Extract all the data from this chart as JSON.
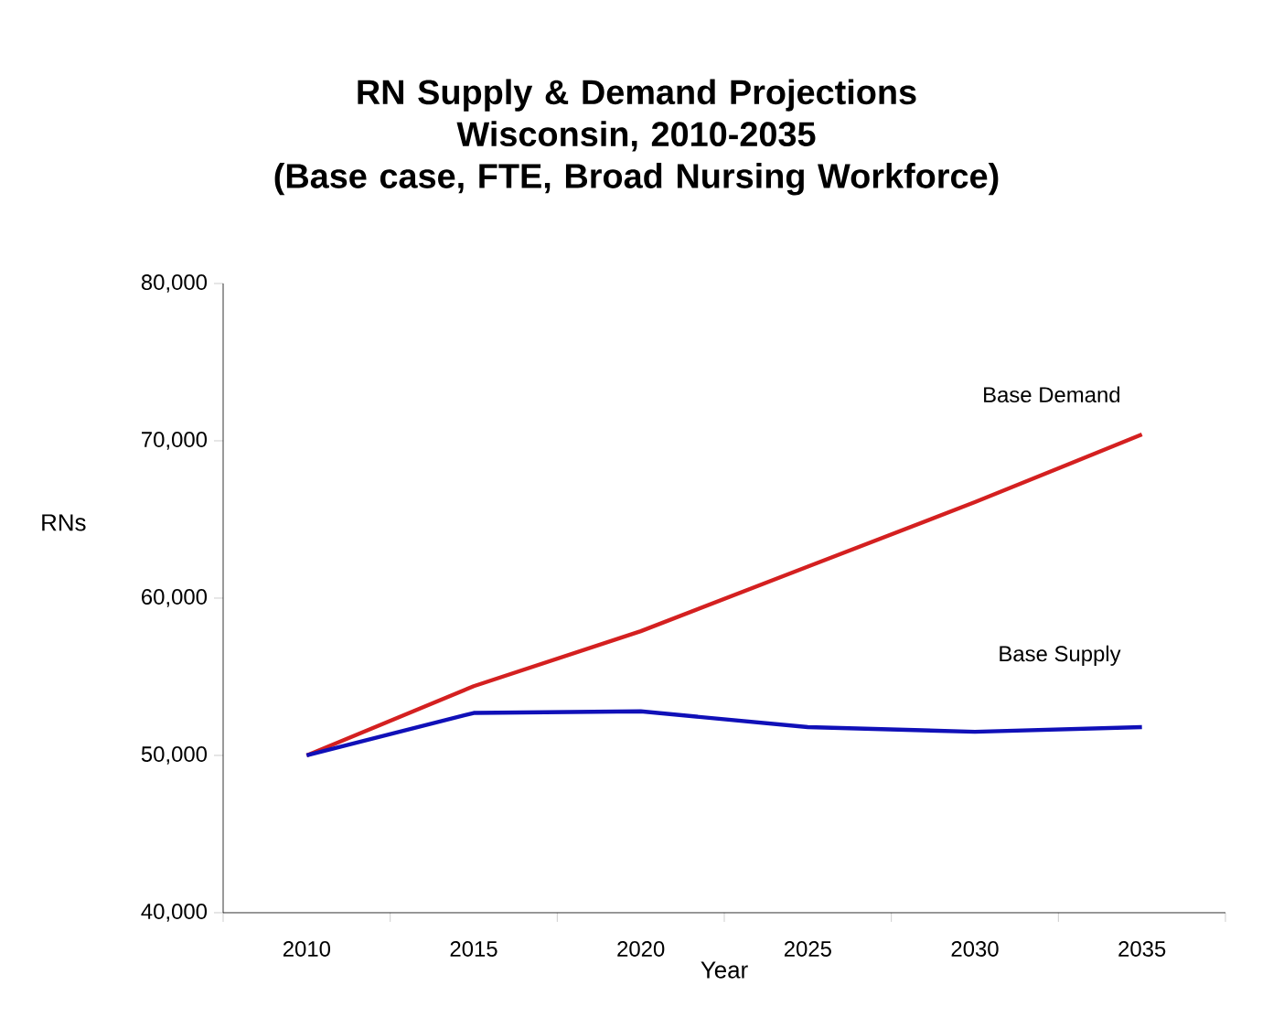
{
  "chart_data": {
    "type": "line",
    "title": "RN Supply & Demand Projections\nWisconsin, 2010-2035\n(Base case, FTE, Broad Nursing Workforce)",
    "xlabel": "Year",
    "ylabel": "RNs",
    "categories": [
      "2010",
      "2015",
      "2020",
      "2025",
      "2030",
      "2035"
    ],
    "series": [
      {
        "name": "Base Demand",
        "color": "#d42020",
        "values": [
          50000,
          54400,
          57900,
          62000,
          66100,
          70400
        ]
      },
      {
        "name": "Base Supply",
        "color": "#1010b8",
        "values": [
          50000,
          52700,
          52800,
          51800,
          51500,
          51800
        ]
      }
    ],
    "ylim": [
      40000,
      80000
    ],
    "yticks": [
      {
        "value": 40000,
        "label": "40,000"
      },
      {
        "value": 50000,
        "label": "50,000"
      },
      {
        "value": 60000,
        "label": "60,000"
      },
      {
        "value": 70000,
        "label": "70,000"
      },
      {
        "value": 80000,
        "label": "80,000"
      }
    ],
    "grid": false,
    "legend": false,
    "marker": "none",
    "line_style": "solid"
  }
}
